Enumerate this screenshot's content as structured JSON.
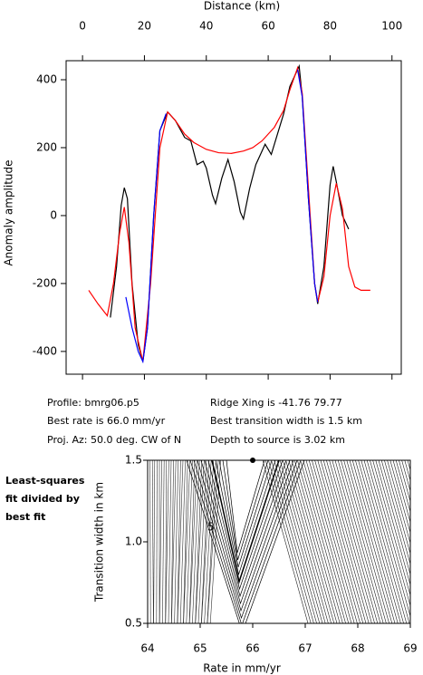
{
  "chart_data": [
    {
      "type": "line",
      "x_label": "Distance (km)",
      "y_label": "Anomaly amplitude",
      "xlim": [
        -5.3,
        103
      ],
      "xticks": [
        0,
        20,
        40,
        60,
        80,
        100
      ],
      "ylim": [
        -467,
        456
      ],
      "yticks": [
        -400,
        -200,
        0,
        200,
        400
      ],
      "series": [
        {
          "color": "#000000",
          "x": [
            9,
            11,
            12.5,
            13.5,
            14.5,
            16,
            18,
            19.5,
            21,
            23,
            25,
            27.5,
            30,
            33,
            35,
            37,
            39,
            40,
            42,
            43,
            45,
            47,
            49,
            51,
            52,
            54,
            56,
            58,
            59,
            61,
            63,
            65,
            67,
            69,
            70,
            71,
            73,
            75,
            76,
            78,
            80,
            81,
            82,
            84,
            86
          ],
          "values": [
            -300,
            -150,
            30,
            82,
            50,
            -200,
            -380,
            -430,
            -330,
            0,
            250,
            305,
            280,
            230,
            220,
            150,
            160,
            140,
            60,
            35,
            110,
            165,
            100,
            10,
            -10,
            80,
            150,
            190,
            210,
            180,
            240,
            300,
            380,
            420,
            440,
            350,
            50,
            -200,
            -260,
            -150,
            90,
            145,
            100,
            0,
            -40
          ]
        },
        {
          "color": "#ff0000",
          "x": [
            2,
            5,
            8,
            10,
            12,
            13.5,
            15,
            17,
            19.5,
            22,
            25,
            27.5,
            30,
            33,
            36,
            40,
            44,
            48,
            52,
            55,
            58,
            62,
            65,
            67,
            69.5,
            71,
            73,
            75,
            76,
            78,
            80,
            82,
            84,
            86,
            88,
            90,
            93
          ],
          "values": [
            -220,
            -260,
            -295,
            -200,
            -50,
            25,
            -80,
            -330,
            -430,
            -200,
            200,
            305,
            280,
            240,
            215,
            195,
            185,
            183,
            190,
            200,
            220,
            260,
            310,
            370,
            435,
            360,
            80,
            -200,
            -255,
            -180,
            0,
            95,
            20,
            -150,
            -210,
            -220,
            -220
          ]
        },
        {
          "color": "#0000ff",
          "x": [
            14,
            16,
            18,
            19.5,
            21,
            23,
            25,
            27,
            null,
            69.5,
            71,
            73,
            75,
            76
          ],
          "values": [
            -240,
            -330,
            -400,
            -430,
            -330,
            0,
            250,
            300,
            null,
            430,
            350,
            50,
            -200,
            -255
          ]
        }
      ],
      "annotations": [
        "Profile: bmrg06.p5",
        "Best rate is 66.0 mm/yr",
        "Proj. Az: 50.0 deg. CW of N",
        "Ridge Xing is -41.76 79.77",
        "Best transition width is 1.5 km",
        "Depth to source is   3.02 km"
      ]
    },
    {
      "type": "contour",
      "x_label": "Rate in mm/yr",
      "y_label": "Transition width in km",
      "xlim": [
        64,
        69
      ],
      "xticks": [
        64,
        65,
        66,
        67,
        68,
        69
      ],
      "ylim": [
        0.5,
        1.5
      ],
      "yticks": [
        {
          "value": 0.5,
          "label": "0.5"
        },
        {
          "value": 1.0,
          "label": "1.0"
        },
        {
          "value": 1.5,
          "label": "1.5"
        }
      ],
      "points": {
        "x": [
          66.0
        ],
        "y": [
          1.5
        ]
      },
      "contour_label": "5",
      "annotations": [
        "Least-squares",
        "fit divided by",
        "best fit"
      ]
    }
  ]
}
